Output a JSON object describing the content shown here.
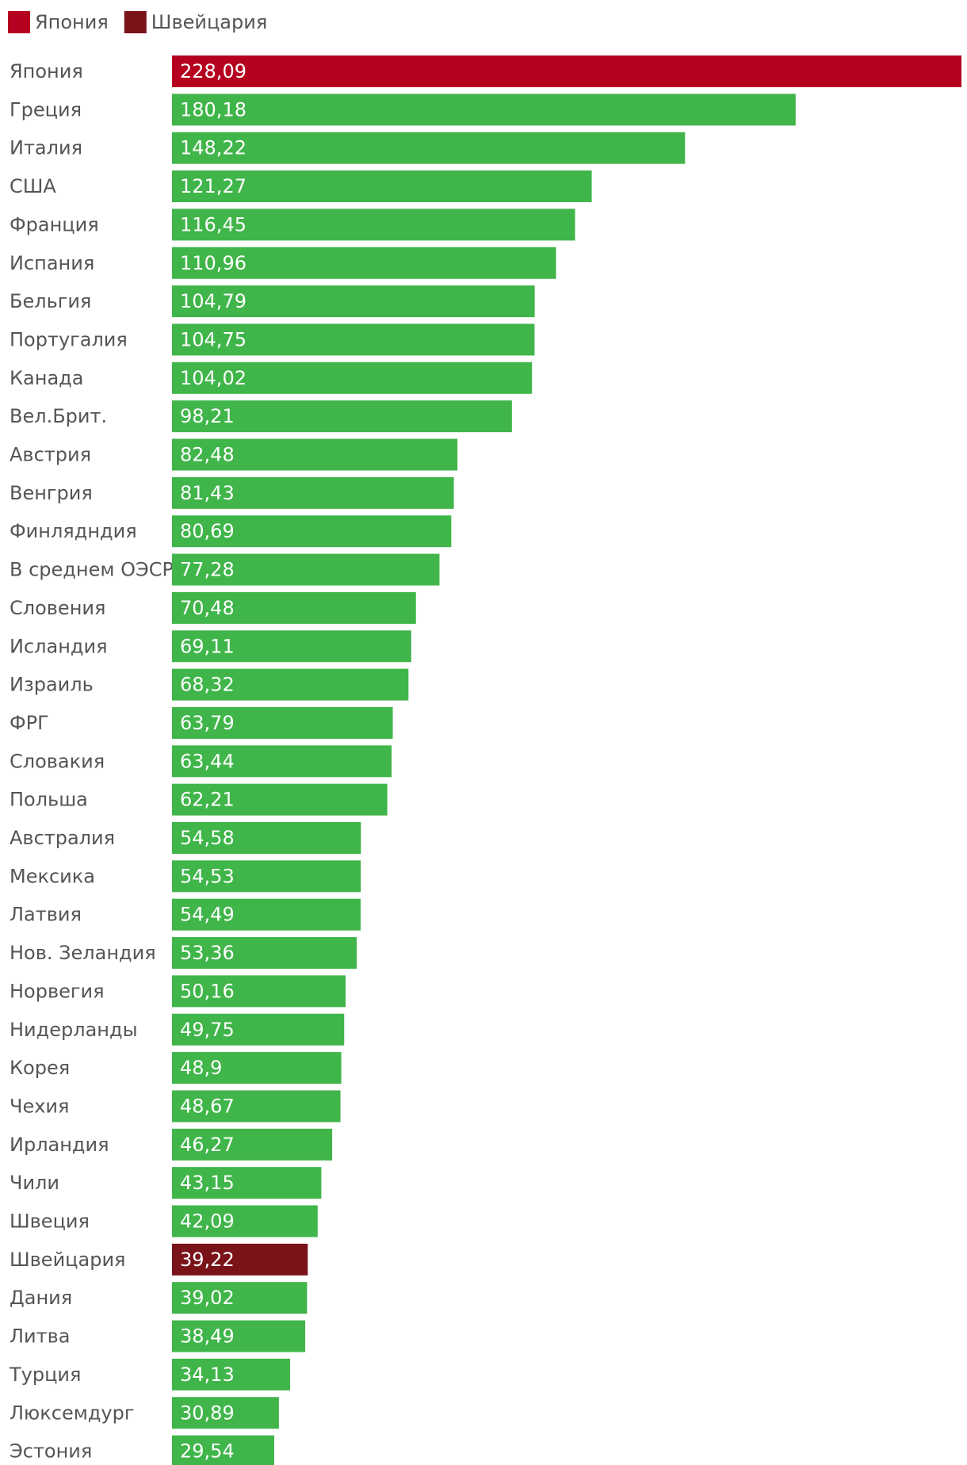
{
  "chart_data": {
    "type": "bar",
    "orientation": "horizontal",
    "legend": {
      "placement": "top-left",
      "entries": [
        {
          "name": "Япония",
          "color": "#b5001f"
        },
        {
          "name": "Швейцария",
          "color": "#7a1219"
        }
      ]
    },
    "colors": {
      "default": "#40b54a",
      "highlight_japan": "#b5001f",
      "highlight_switzerland": "#7a1219",
      "value_text": "#ffffff",
      "label_text": "#555555"
    },
    "xlim": [
      0,
      228.09
    ],
    "grid": false,
    "categories": [
      "Япония",
      "Греция",
      "Италия",
      "США",
      "Франция",
      "Испания",
      "Бельгия",
      "Португалия",
      "Канада",
      "Вел.Брит.",
      "Австрия",
      "Венгрия",
      "Финлядндия",
      "В среднем ОЭСР",
      "Словения",
      "Исландия",
      "Израиль",
      "ФРГ",
      "Словакия",
      "Польша",
      "Австралия",
      "Мексика",
      "Латвия",
      "Нов. Зеландия",
      "Норвегия",
      "Нидерланды",
      "Корея",
      "Чехия",
      "Ирландия",
      "Чили",
      "Швеция",
      "Швейцария",
      "Дания",
      "Литва",
      "Турция",
      "Люксемдург",
      "Эстония"
    ],
    "values": [
      228.09,
      180.18,
      148.22,
      121.27,
      116.45,
      110.96,
      104.79,
      104.75,
      104.02,
      98.21,
      82.48,
      81.43,
      80.69,
      77.28,
      70.48,
      69.11,
      68.32,
      63.79,
      63.44,
      62.21,
      54.58,
      54.53,
      54.49,
      53.36,
      50.16,
      49.75,
      48.9,
      48.67,
      46.27,
      43.15,
      42.09,
      39.22,
      39.02,
      38.49,
      34.13,
      30.89,
      29.54
    ],
    "value_labels": [
      "228,09",
      "180,18",
      "148,22",
      "121,27",
      "116,45",
      "110,96",
      "104,79",
      "104,75",
      "104,02",
      "98,21",
      "82,48",
      "81,43",
      "80,69",
      "77,28",
      "70,48",
      "69,11",
      "68,32",
      "63,79",
      "63,44",
      "62,21",
      "54,58",
      "54,53",
      "54,49",
      "53,36",
      "50,16",
      "49,75",
      "48,9",
      "48,67",
      "46,27",
      "43,15",
      "42,09",
      "39,22",
      "39,02",
      "38,49",
      "34,13",
      "30,89",
      "29,54"
    ],
    "highlights": {
      "Япония": "highlight_japan",
      "Швейцария": "highlight_switzerland"
    }
  }
}
